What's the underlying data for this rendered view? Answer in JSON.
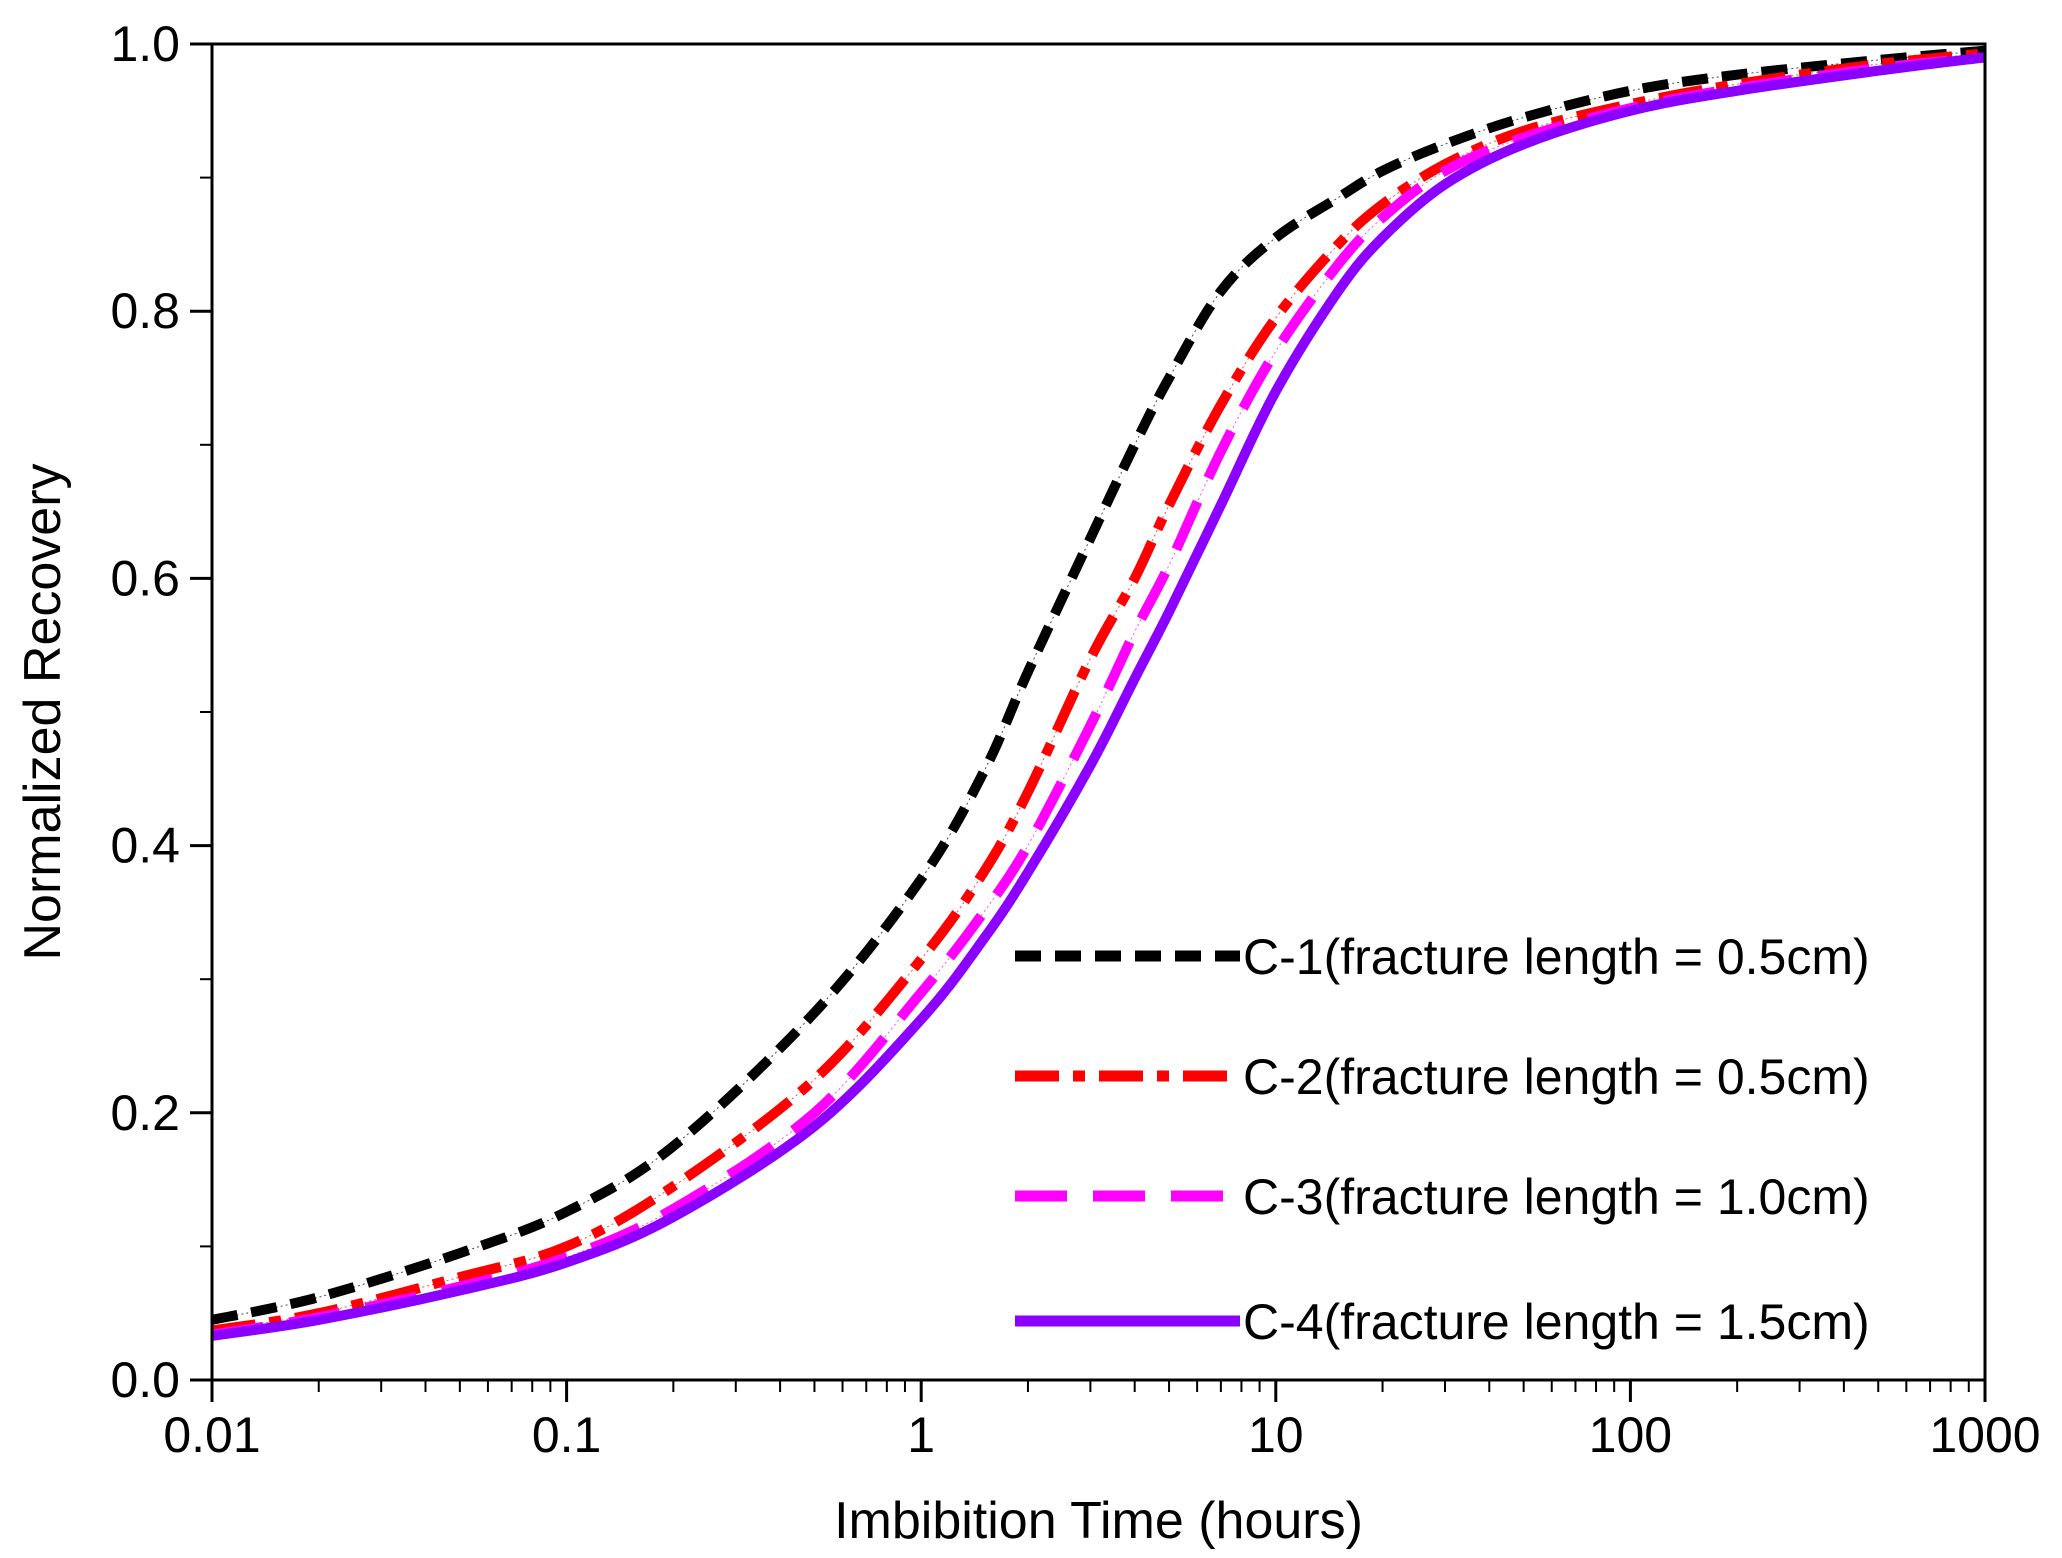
{
  "chart_data": {
    "type": "line",
    "title": "",
    "xlabel": "Imbibition Time (hours)",
    "ylabel": "Normalized Recovery",
    "xscale": "log",
    "xlim": [
      0.01,
      1000
    ],
    "ylim": [
      0.0,
      1.0
    ],
    "x_ticks": [
      {
        "value": 0.01,
        "label": "0.01"
      },
      {
        "value": 0.1,
        "label": "0.1"
      },
      {
        "value": 1,
        "label": "1"
      },
      {
        "value": 10,
        "label": "10"
      },
      {
        "value": 100,
        "label": "100"
      },
      {
        "value": 1000,
        "label": "1000"
      }
    ],
    "y_ticks": [
      {
        "value": 0.0,
        "label": "0.0"
      },
      {
        "value": 0.2,
        "label": "0.2"
      },
      {
        "value": 0.4,
        "label": "0.4"
      },
      {
        "value": 0.6,
        "label": "0.6"
      },
      {
        "value": 0.8,
        "label": "0.8"
      },
      {
        "value": 1.0,
        "label": "1.0"
      }
    ],
    "grid": false,
    "legend_position": "bottom-right",
    "series": [
      {
        "name": "C-1(fracture length = 0.5cm)",
        "color": "#000000",
        "style": "dash",
        "x": [
          0.01,
          0.02,
          0.05,
          0.1,
          0.2,
          0.5,
          1,
          1.5,
          2,
          3,
          4,
          5,
          7,
          10,
          15,
          20,
          30,
          50,
          100,
          200,
          500,
          1000
        ],
        "y": [
          0.045,
          0.062,
          0.095,
          0.126,
          0.175,
          0.275,
          0.375,
          0.455,
          0.53,
          0.63,
          0.7,
          0.75,
          0.815,
          0.855,
          0.885,
          0.905,
          0.925,
          0.945,
          0.965,
          0.977,
          0.988,
          0.995
        ]
      },
      {
        "name": "C-2(fracture length = 0.5cm)",
        "color": "#ff0000",
        "style": "dashdot",
        "x": [
          0.01,
          0.02,
          0.05,
          0.1,
          0.2,
          0.5,
          1,
          1.5,
          2,
          3,
          4,
          5,
          7,
          10,
          15,
          20,
          30,
          50,
          100,
          200,
          500,
          1000
        ],
        "y": [
          0.037,
          0.05,
          0.077,
          0.1,
          0.145,
          0.225,
          0.315,
          0.38,
          0.44,
          0.54,
          0.6,
          0.655,
          0.73,
          0.795,
          0.85,
          0.88,
          0.91,
          0.935,
          0.955,
          0.97,
          0.985,
          0.993
        ]
      },
      {
        "name": "C-3(fracture length = 1.0cm)",
        "color": "#ff00ff",
        "style": "longdash",
        "x": [
          0.01,
          0.02,
          0.05,
          0.1,
          0.2,
          0.5,
          1,
          1.5,
          2,
          3,
          4,
          5,
          7,
          10,
          15,
          20,
          30,
          50,
          100,
          200,
          500,
          1000
        ],
        "y": [
          0.034,
          0.047,
          0.07,
          0.092,
          0.128,
          0.2,
          0.29,
          0.35,
          0.4,
          0.49,
          0.56,
          0.61,
          0.695,
          0.77,
          0.835,
          0.87,
          0.905,
          0.93,
          0.952,
          0.967,
          0.982,
          0.99
        ]
      },
      {
        "name": "C-4(fracture length = 1.5cm)",
        "color": "#8b00ff",
        "style": "solid",
        "x": [
          0.01,
          0.02,
          0.05,
          0.1,
          0.2,
          0.5,
          1,
          1.5,
          2,
          3,
          4,
          5,
          7,
          10,
          15,
          20,
          30,
          50,
          100,
          200,
          500,
          1000
        ],
        "y": [
          0.033,
          0.045,
          0.067,
          0.088,
          0.122,
          0.19,
          0.27,
          0.33,
          0.38,
          0.46,
          0.525,
          0.575,
          0.655,
          0.74,
          0.815,
          0.855,
          0.895,
          0.925,
          0.95,
          0.965,
          0.98,
          0.99
        ]
      }
    ]
  }
}
